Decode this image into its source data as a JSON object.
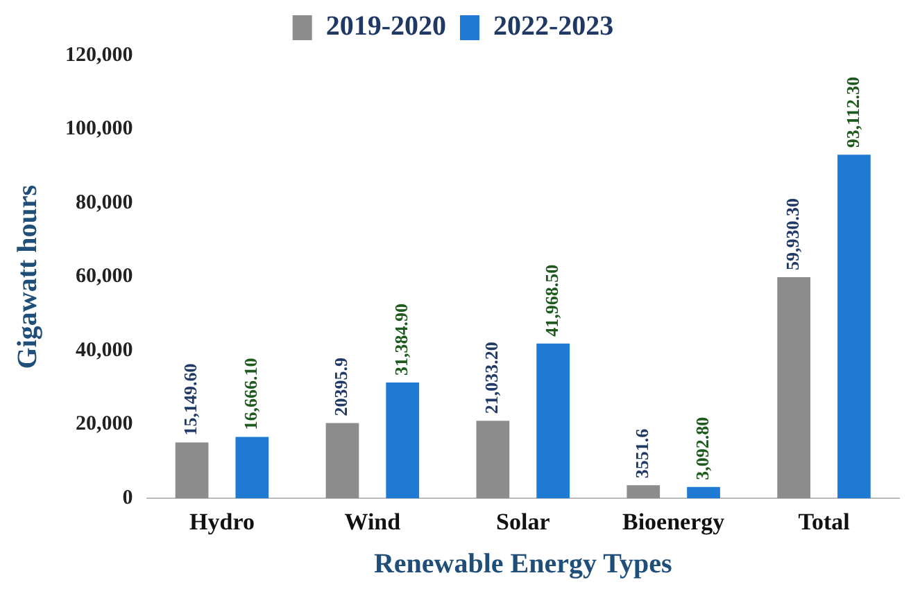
{
  "chart_data": {
    "type": "bar",
    "xlabel": "Renewable Energy Types",
    "ylabel": "Gigawatt hours",
    "categories": [
      "Hydro",
      "Wind",
      "Solar",
      "Bioenergy",
      "Total"
    ],
    "series": [
      {
        "name": "2019-2020",
        "color": "#8c8c8c",
        "values": [
          15149.6,
          20395.9,
          21033.2,
          3551.6,
          59930.3
        ],
        "value_labels": [
          "15,149.60",
          "20395.9",
          "21,033.20",
          "3551.6",
          "59,930.30"
        ]
      },
      {
        "name": "2022-2023",
        "color": "#1f7ad4",
        "values": [
          16666.1,
          31384.9,
          41968.5,
          3092.8,
          93112.3
        ],
        "value_labels": [
          "16,666.10",
          "31,384.90",
          "41,968.50",
          "3,092.80",
          "93,112.30"
        ]
      }
    ],
    "ylim": [
      0,
      120000
    ],
    "yticks": [
      0,
      {
        "value": 20000,
        "label": "20,000"
      },
      {
        "value": 40000,
        "label": "40,000"
      },
      {
        "value": 60000,
        "label": "60,000"
      },
      {
        "value": 80000,
        "label": "80,000"
      },
      {
        "value": 100000,
        "label": "100,000"
      },
      {
        "value": 120000,
        "label": "120,000"
      }
    ],
    "grid": false,
    "legend": "top"
  }
}
